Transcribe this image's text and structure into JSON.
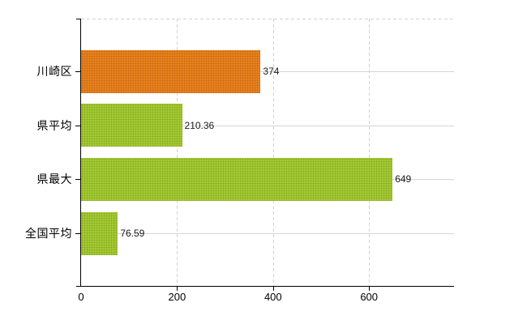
{
  "page": {
    "background": "#ffffff"
  },
  "colors": {
    "axis": "#000000",
    "gridline_solid": "#d6d6d6",
    "gridline_dashed": "#d2d2d2",
    "category_text": "#000000",
    "value_text": "#1a1a1a",
    "tick_label_text": "#000000",
    "orange_fill": "#e6831e",
    "orange_dot": "#cf6a12",
    "green_fill": "#a4ca35",
    "green_dot": "#8aad1f"
  },
  "chart_data": {
    "type": "bar",
    "orientation": "horizontal",
    "title": "",
    "xlabel": "",
    "ylabel": "",
    "legend": "none",
    "categories": [
      "川崎区",
      "県平均",
      "県最大",
      "全国平均"
    ],
    "values": [
      374,
      210.36,
      649,
      76.59
    ],
    "value_labels": [
      "374",
      "210.36",
      "649",
      "76.59"
    ],
    "x_ticks": [
      0,
      200,
      400,
      600
    ],
    "x_tick_labels": [
      "0",
      "200",
      "400",
      "600"
    ],
    "xlim": [
      0,
      778
    ],
    "grid": {
      "vertical": "dashed",
      "horizontal": "solid",
      "top_border": "dashed"
    },
    "bars": [
      {
        "category": "川崎区",
        "value": 374,
        "label": "374",
        "fill": "#e6831e",
        "dot": "#cf6a12"
      },
      {
        "category": "県平均",
        "value": 210.36,
        "label": "210.36",
        "fill": "#a4ca35",
        "dot": "#8aad1f"
      },
      {
        "category": "県最大",
        "value": 649,
        "label": "649",
        "fill": "#a4ca35",
        "dot": "#8aad1f"
      },
      {
        "category": "全国平均",
        "value": 76.59,
        "label": "76.59",
        "fill": "#a4ca35",
        "dot": "#8aad1f"
      }
    ]
  }
}
